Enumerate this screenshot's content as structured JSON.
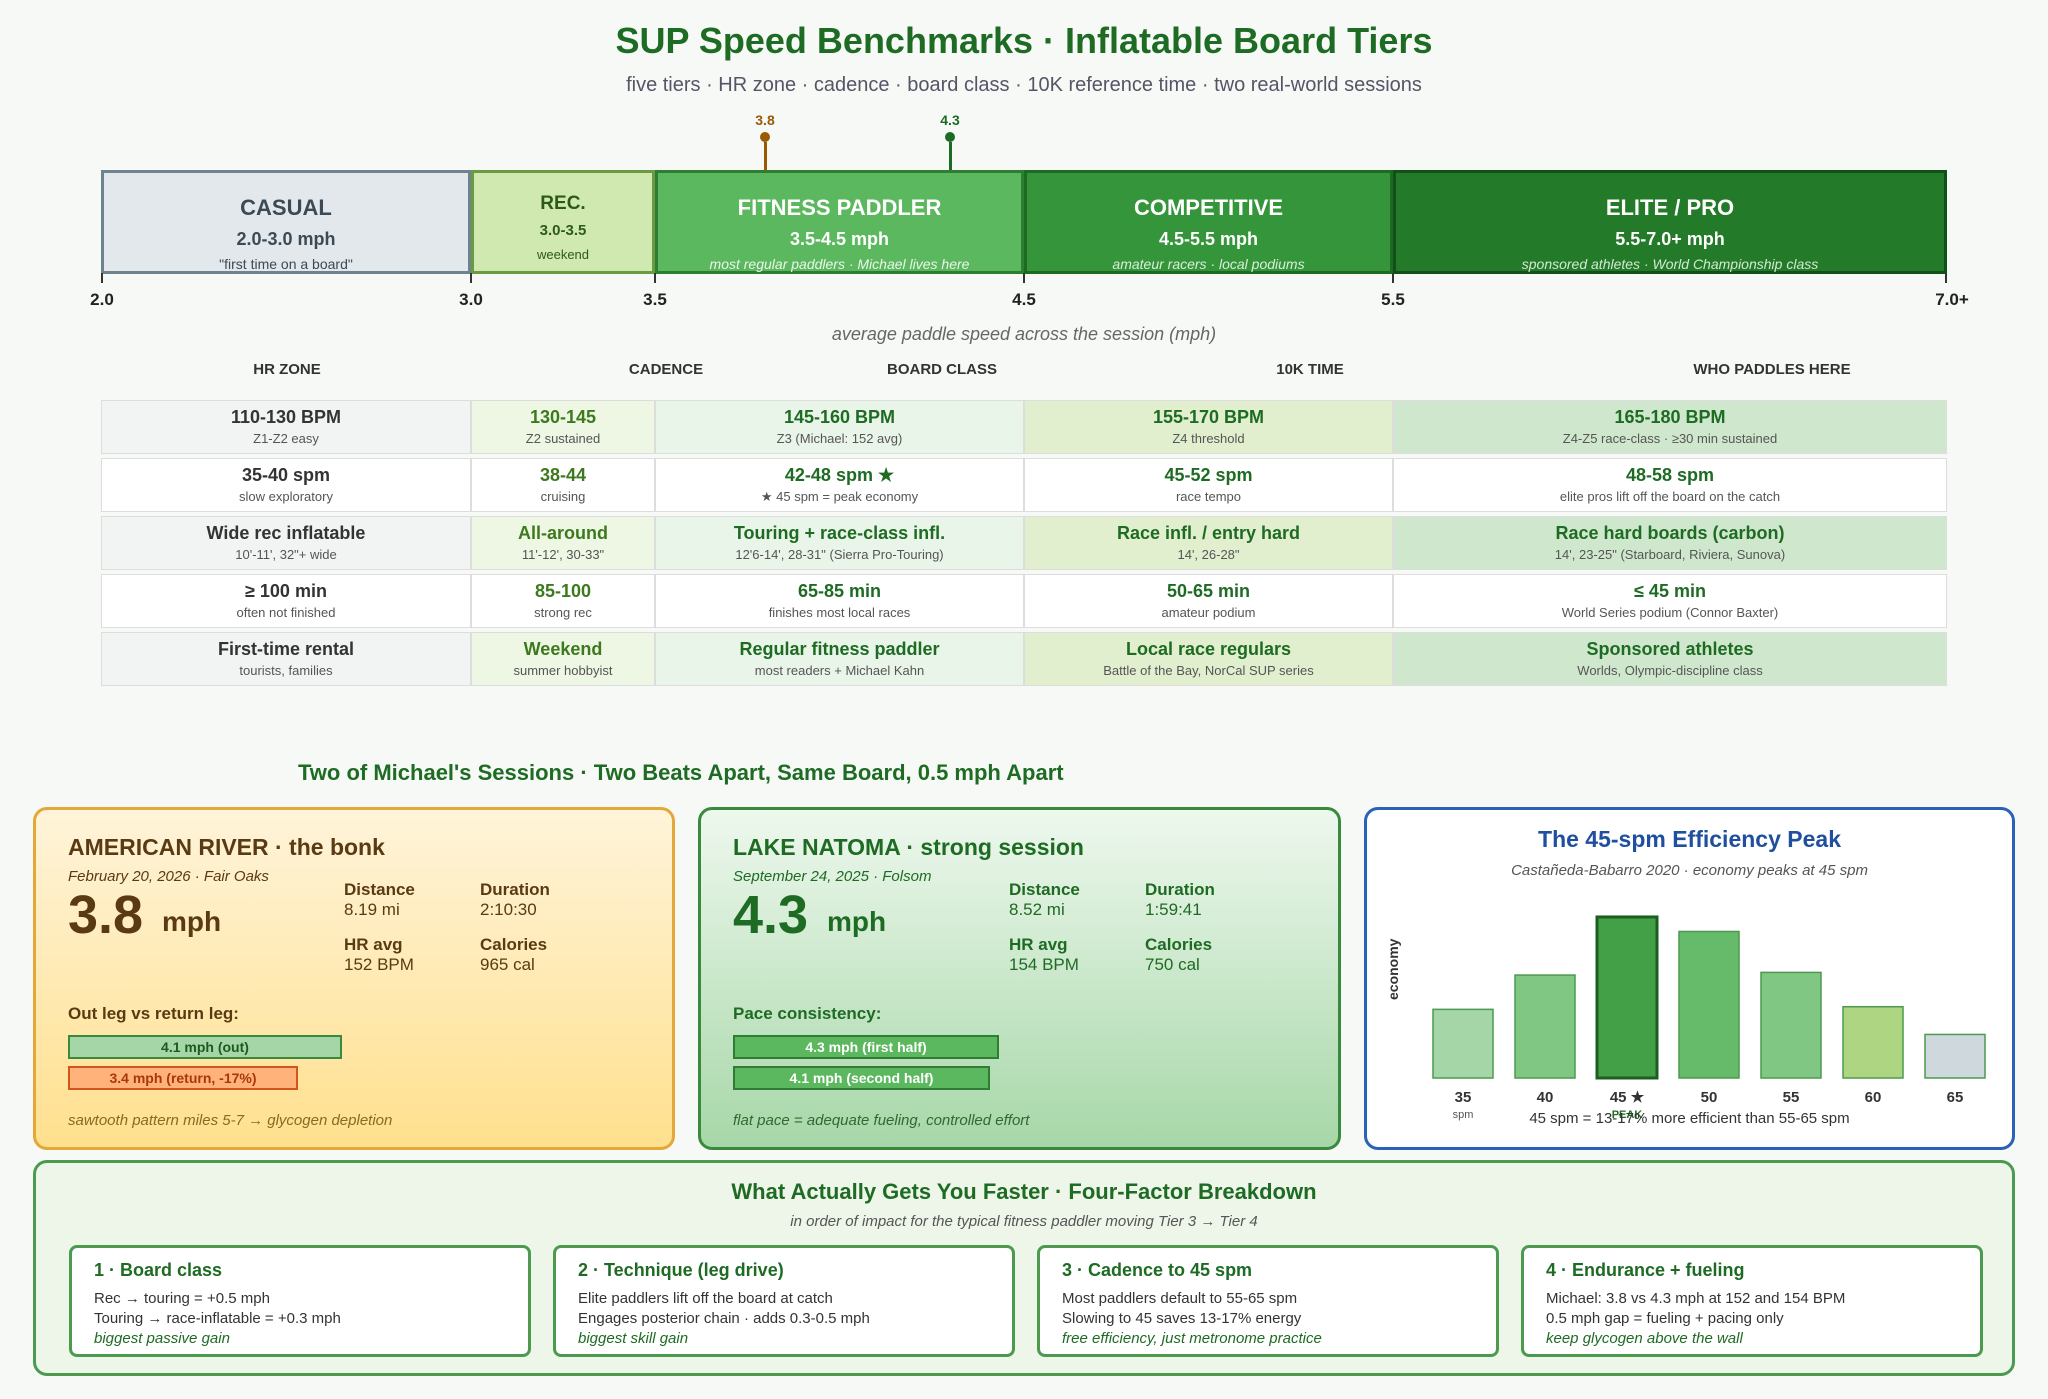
{
  "title": "SUP Speed Benchmarks · Inflatable Board Tiers",
  "subtitle": "five tiers · HR zone · cadence · board class · 10K reference time · two real-world sessions",
  "markers": [
    {
      "label": "3.8",
      "value": 3.8,
      "color": "#9a5a00"
    },
    {
      "label": "4.3",
      "value": 4.3,
      "color": "#1e6b23"
    }
  ],
  "tiers": [
    {
      "name": "CASUAL",
      "range": "2.0-3.0 mph",
      "note": "\"first time on a board\""
    },
    {
      "name": "REC.",
      "range": "3.0-3.5",
      "note": "weekend"
    },
    {
      "name": "FITNESS PADDLER",
      "range": "3.5-4.5 mph",
      "note": "most regular paddlers · Michael lives here"
    },
    {
      "name": "COMPETITIVE",
      "range": "4.5-5.5 mph",
      "note": "amateur racers · local podiums"
    },
    {
      "name": "ELITE / PRO",
      "range": "5.5-7.0+ mph",
      "note": "sponsored athletes · World Championship class"
    }
  ],
  "ticks": [
    "2.0",
    "3.0",
    "3.5",
    "4.5",
    "5.5",
    "7.0+"
  ],
  "axis_label": "average paddle speed across the session (mph)",
  "column_headers": [
    "HR ZONE",
    "CADENCE",
    "BOARD CLASS",
    "10K TIME",
    "WHO PADDLES HERE"
  ],
  "rows": [
    [
      {
        "main": "110-130 BPM",
        "sub": "Z1-Z2 easy"
      },
      {
        "main": "130-145",
        "sub": "Z2 sustained"
      },
      {
        "main": "145-160 BPM",
        "sub": "Z3 (Michael: 152 avg)"
      },
      {
        "main": "155-170 BPM",
        "sub": "Z4 threshold"
      },
      {
        "main": "165-180 BPM",
        "sub": "Z4-Z5 race-class · ≥30 min sustained"
      }
    ],
    [
      {
        "main": "35-40 spm",
        "sub": "slow exploratory"
      },
      {
        "main": "38-44",
        "sub": "cruising"
      },
      {
        "main": "42-48 spm ★",
        "sub": "★ 45 spm = peak economy"
      },
      {
        "main": "45-52 spm",
        "sub": "race tempo"
      },
      {
        "main": "48-58 spm",
        "sub": "elite pros lift off the board on the catch"
      }
    ],
    [
      {
        "main": "Wide rec inflatable",
        "sub": "10'-11', 32\"+ wide"
      },
      {
        "main": "All-around",
        "sub": "11'-12', 30-33\""
      },
      {
        "main": "Touring + race-class infl.",
        "sub": "12'6-14', 28-31\" (Sierra Pro-Touring)"
      },
      {
        "main": "Race infl. / entry hard",
        "sub": "14', 26-28\""
      },
      {
        "main": "Race hard boards (carbon)",
        "sub": "14', 23-25\" (Starboard, Riviera, Sunova)"
      }
    ],
    [
      {
        "main": "≥ 100 min",
        "sub": "often not finished"
      },
      {
        "main": "85-100",
        "sub": "strong rec"
      },
      {
        "main": "65-85 min",
        "sub": "finishes most local races"
      },
      {
        "main": "50-65 min",
        "sub": "amateur podium"
      },
      {
        "main": "≤ 45 min",
        "sub": "World Series podium (Connor Baxter)"
      }
    ],
    [
      {
        "main": "First-time rental",
        "sub": "tourists, families"
      },
      {
        "main": "Weekend",
        "sub": "summer hobbyist"
      },
      {
        "main": "Regular fitness paddler",
        "sub": "most readers + Michael Kahn"
      },
      {
        "main": "Local race regulars",
        "sub": "Battle of the Bay, NorCal SUP series"
      },
      {
        "main": "Sponsored athletes",
        "sub": "Worlds, Olympic-discipline class"
      }
    ]
  ],
  "sessions_title": "Two of Michael's Sessions · Two Beats Apart, Same Board, 0.5 mph Apart",
  "session_a": {
    "heading": "AMERICAN RIVER · the bonk",
    "date": "February 20, 2026 · Fair Oaks",
    "speed": "3.8",
    "unit": "mph",
    "distance_label": "Distance",
    "distance": "8.19 mi",
    "duration_label": "Duration",
    "duration": "2:10:30",
    "hr_label": "HR avg",
    "hr": "152 BPM",
    "cal_label": "Calories",
    "cal": "965 cal",
    "legs_label": "Out leg vs return leg:",
    "bar1": "4.1 mph (out)",
    "bar1_value": 4.1,
    "bar2": "3.4 mph (return, -17%)",
    "bar2_value": 3.4,
    "footer": "sawtooth pattern miles 5-7 → glycogen depletion"
  },
  "session_b": {
    "heading": "LAKE NATOMA · strong session",
    "date": "September 24, 2025 · Folsom",
    "speed": "4.3",
    "unit": "mph",
    "distance_label": "Distance",
    "distance": "8.52 mi",
    "duration_label": "Duration",
    "duration": "1:59:41",
    "hr_label": "HR avg",
    "hr": "154 BPM",
    "cal_label": "Calories",
    "cal": "750 cal",
    "legs_label": "Pace consistency:",
    "bar1": "4.3 mph (first half)",
    "bar1_value": 4.3,
    "bar2": "4.1 mph (second half)",
    "bar2_value": 4.1,
    "footer": "flat pace = adequate fueling, controlled effort"
  },
  "efficiency": {
    "title": "The 45-spm Efficiency Peak",
    "subtitle": "Castañeda-Babarro 2020 · economy peaks at 45 spm",
    "ylabel": "economy",
    "spm_unit": "spm",
    "peak_label": "PEAK",
    "footer": "45 spm = 13-17% more efficient than 55-65 spm"
  },
  "chart_data": {
    "type": "bar",
    "title": "The 45-spm Efficiency Peak",
    "categories": [
      "35",
      "40",
      "45 ★",
      "50",
      "55",
      "60",
      "65"
    ],
    "values": [
      52,
      78,
      122,
      111,
      80,
      54,
      33
    ],
    "ylabel": "economy",
    "colors": [
      "#a5d6a7",
      "#81c784",
      "#43a047",
      "#66bb6a",
      "#81c784",
      "#aed581",
      "#cfd8dc"
    ]
  },
  "factors": {
    "title": "What Actually Gets You Faster · Four-Factor Breakdown",
    "subtitle": "in order of impact for the typical fitness paddler moving Tier 3 → Tier 4",
    "items": [
      {
        "title": "1 · Board class",
        "line1": "Rec → touring = +0.5 mph",
        "line2": "Touring → race-inflatable = +0.3 mph",
        "note": "biggest passive gain"
      },
      {
        "title": "2 · Technique (leg drive)",
        "line1": "Elite paddlers lift off the board at catch",
        "line2": "Engages posterior chain · adds 0.3-0.5 mph",
        "note": "biggest skill gain"
      },
      {
        "title": "3 · Cadence to 45 spm",
        "line1": "Most paddlers default to 55-65 spm",
        "line2": "Slowing to 45 saves 13-17% energy",
        "note": "free efficiency, just metronome practice"
      },
      {
        "title": "4 · Endurance + fueling",
        "line1": "Michael: 3.8 vs 4.3 mph at 152 and 154 BPM",
        "line2": "0.5 mph gap = fueling + pacing only",
        "note": "keep glycogen above the wall"
      }
    ]
  }
}
